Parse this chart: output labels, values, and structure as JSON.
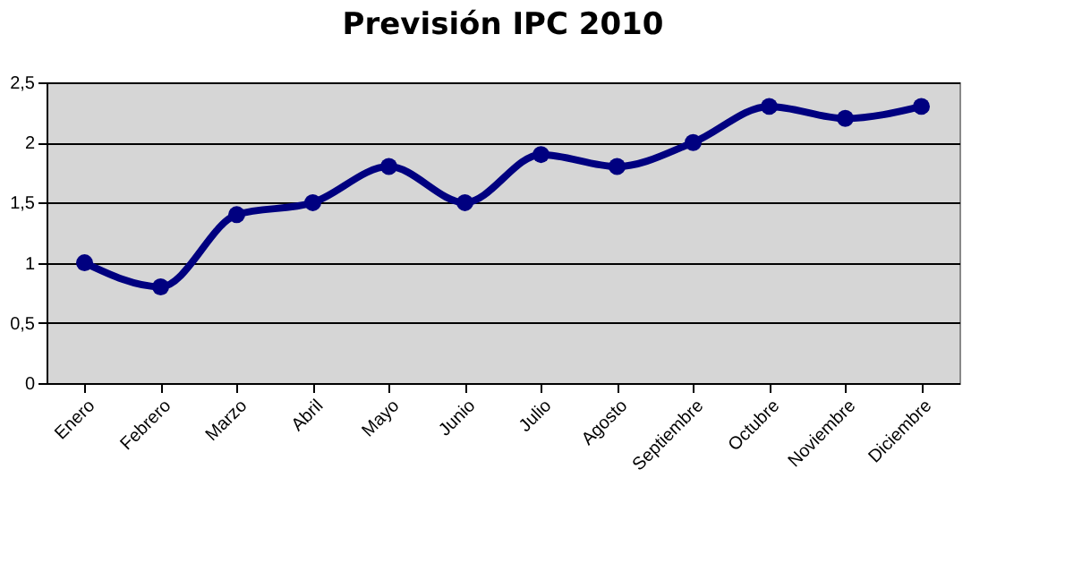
{
  "chart_data": {
    "type": "line",
    "title": "Previsión IPC 2010",
    "categories": [
      "Enero",
      "Febrero",
      "Marzo",
      "Abril",
      "Mayo",
      "Junio",
      "Julio",
      "Agosto",
      "Septiembre",
      "Octubre",
      "Noviembre",
      "Diciembre"
    ],
    "series": [
      {
        "color": "#000080",
        "values": [
          1,
          0.8,
          1.4,
          1.5,
          1.8,
          1.5,
          1.9,
          1.8,
          2.0,
          2.3,
          2.2,
          2.3
        ]
      }
    ],
    "ylim": [
      0,
      2.5
    ],
    "yticks": [
      0,
      {
        "value": 0.5,
        "label": "0,5"
      },
      1,
      {
        "value": 1.5,
        "label": "1,5"
      },
      2,
      {
        "value": 2.5,
        "label": "2,5"
      }
    ],
    "grid": "y",
    "marker": "circle",
    "line_style": "solid"
  }
}
